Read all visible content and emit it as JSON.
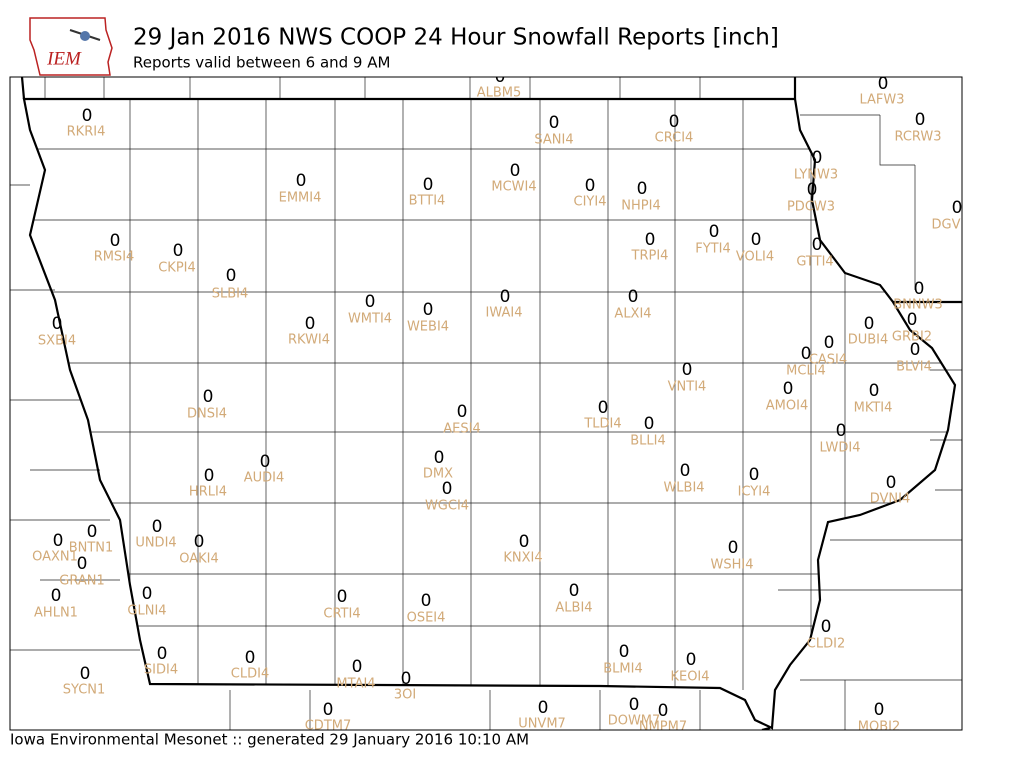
{
  "header": {
    "title": "29 Jan 2016 NWS COOP 24 Hour Snowfall Reports [inch]",
    "subtitle": "Reports valid between 6 and 9 AM",
    "logo": "IEM"
  },
  "footer": "Iowa Environmental Mesonet :: generated 29 January 2016 10:10 AM",
  "stations": [
    {
      "id": "ALBM5",
      "value": 0
    },
    {
      "id": "RKRI4",
      "value": 0
    },
    {
      "id": "SANI4",
      "value": 0
    },
    {
      "id": "CRCI4",
      "value": 0
    },
    {
      "id": "LAFW3",
      "value": 0
    },
    {
      "id": "RCRW3",
      "value": 0
    },
    {
      "id": "LYNW3",
      "value": 0
    },
    {
      "id": "PDCW3",
      "value": 0
    },
    {
      "id": "DGV",
      "value": 0
    },
    {
      "id": "EMMI4",
      "value": 0
    },
    {
      "id": "BTTI4",
      "value": 0
    },
    {
      "id": "MCWI4",
      "value": 0
    },
    {
      "id": "CIYI4",
      "value": 0
    },
    {
      "id": "NHPI4",
      "value": 0
    },
    {
      "id": "RMSI4",
      "value": 0
    },
    {
      "id": "CKPI4",
      "value": 0
    },
    {
      "id": "SLBI4",
      "value": 0
    },
    {
      "id": "FYTI4",
      "value": 0
    },
    {
      "id": "VOLI4",
      "value": 0
    },
    {
      "id": "TRPI4",
      "value": 0
    },
    {
      "id": "GTTI4",
      "value": 0
    },
    {
      "id": "BNNW3",
      "value": 0
    },
    {
      "id": "SXBI4",
      "value": 0
    },
    {
      "id": "WMTI4",
      "value": 0
    },
    {
      "id": "WEBI4",
      "value": 0
    },
    {
      "id": "IWAI4",
      "value": 0
    },
    {
      "id": "ALXI4",
      "value": 0
    },
    {
      "id": "RKWI4",
      "value": 0
    },
    {
      "id": "DUBI4",
      "value": 0
    },
    {
      "id": "GRBI2",
      "value": 0
    },
    {
      "id": "CASI4",
      "value": 0
    },
    {
      "id": "MCLI4",
      "value": 0
    },
    {
      "id": "BLVI4",
      "value": 0
    },
    {
      "id": "VNTI4",
      "value": 0
    },
    {
      "id": "AMOI4",
      "value": 0
    },
    {
      "id": "MKTI4",
      "value": 0
    },
    {
      "id": "DNSI4",
      "value": 0
    },
    {
      "id": "AESI4",
      "value": 0
    },
    {
      "id": "TLDI4",
      "value": 0
    },
    {
      "id": "BLLI4",
      "value": 0
    },
    {
      "id": "LWDI4",
      "value": 0
    },
    {
      "id": "HRLI4",
      "value": 0
    },
    {
      "id": "AUDI4",
      "value": 0
    },
    {
      "id": "DMX",
      "value": 0
    },
    {
      "id": "WGCI4",
      "value": 0
    },
    {
      "id": "WLBI4",
      "value": 0
    },
    {
      "id": "ICYI4",
      "value": 0
    },
    {
      "id": "DVNI4",
      "value": 0
    },
    {
      "id": "BNTN1",
      "value": 0
    },
    {
      "id": "UNDI4",
      "value": 0
    },
    {
      "id": "OAKI4",
      "value": 0
    },
    {
      "id": "OAXN1",
      "value": 0
    },
    {
      "id": "GRAN1",
      "value": 0
    },
    {
      "id": "KNXI4",
      "value": 0
    },
    {
      "id": "WSHI4",
      "value": 0
    },
    {
      "id": "GLNI4",
      "value": 0
    },
    {
      "id": "CRTI4",
      "value": 0
    },
    {
      "id": "OSEI4",
      "value": 0
    },
    {
      "id": "ALBI4",
      "value": 0
    },
    {
      "id": "AHLN1",
      "value": 0
    },
    {
      "id": "CLDI2",
      "value": 0
    },
    {
      "id": "SIDI4",
      "value": 0
    },
    {
      "id": "CLDI4",
      "value": 0
    },
    {
      "id": "BLMI4",
      "value": 0
    },
    {
      "id": "KEOI4",
      "value": 0
    },
    {
      "id": "MTAI4",
      "value": 0
    },
    {
      "id": "3OI",
      "value": 0
    },
    {
      "id": "SYCN1",
      "value": 0
    },
    {
      "id": "DOWM7",
      "value": 0
    },
    {
      "id": "UNVM7",
      "value": 0
    },
    {
      "id": "NMPM7",
      "value": 0
    },
    {
      "id": "MOBI2",
      "value": 0
    },
    {
      "id": "CDTM7",
      "value": 0
    }
  ]
}
